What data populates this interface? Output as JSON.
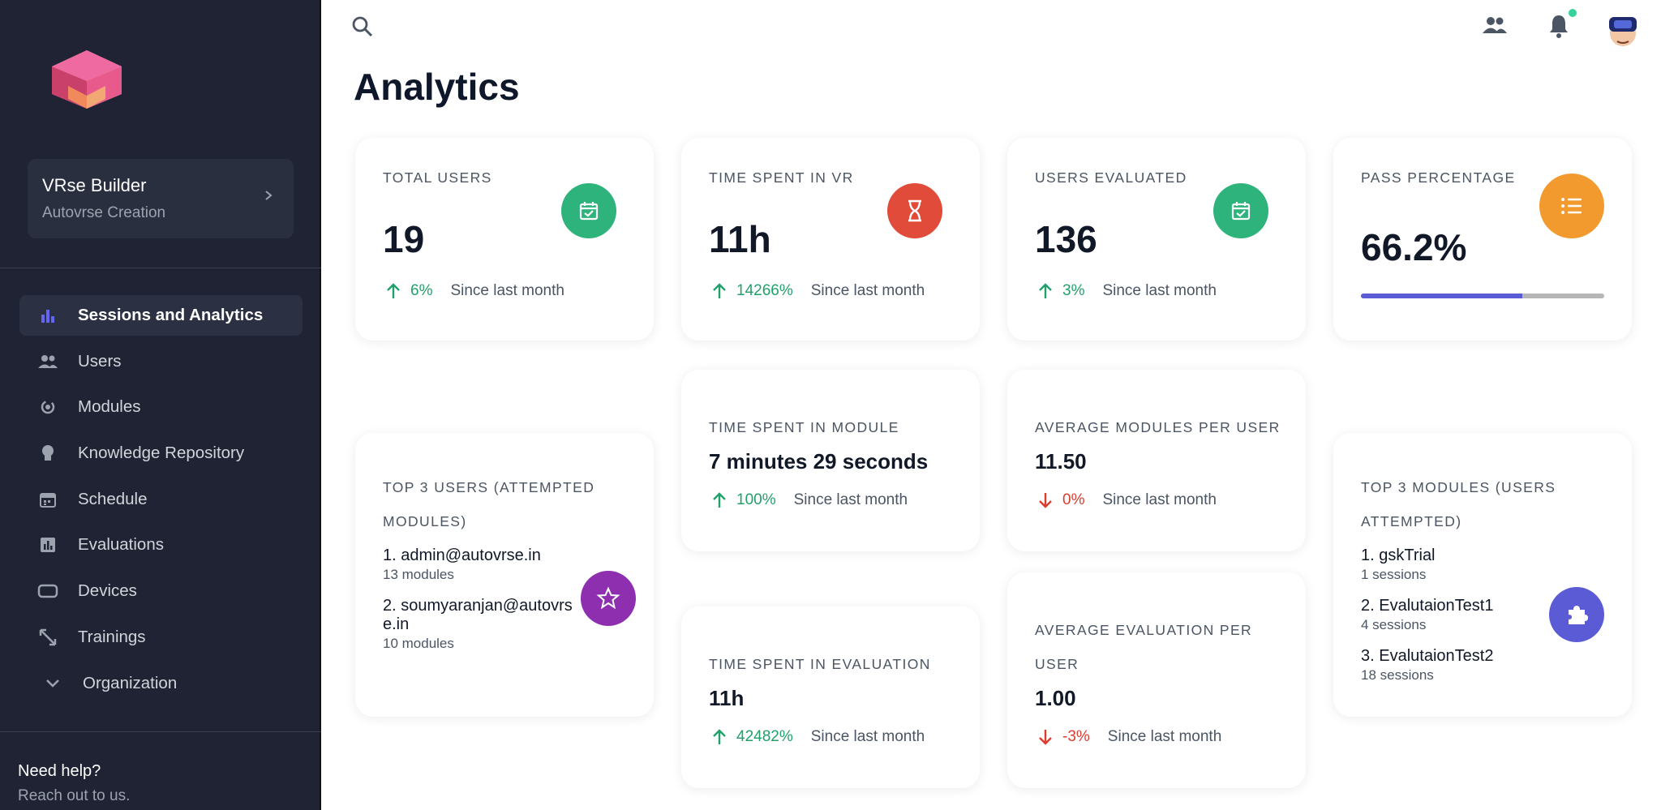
{
  "sidebar": {
    "tenant": {
      "name": "VRse Builder",
      "subtitle": "Autovrse Creation"
    },
    "nav": [
      {
        "label": "Sessions and Analytics",
        "icon": "bar-chart-icon",
        "active": true
      },
      {
        "label": "Users",
        "icon": "users-icon"
      },
      {
        "label": "Modules",
        "icon": "modules-icon"
      },
      {
        "label": "Knowledge Repository",
        "icon": "lightbulb-icon"
      },
      {
        "label": "Schedule",
        "icon": "calendar-icon"
      },
      {
        "label": "Evaluations",
        "icon": "evaluations-icon"
      },
      {
        "label": "Devices",
        "icon": "device-icon"
      },
      {
        "label": "Trainings",
        "icon": "trainings-icon"
      },
      {
        "label": "Organization",
        "icon": "chevron-down-icon"
      }
    ],
    "help": {
      "title": "Need help?",
      "subtitle": "Reach out to us."
    }
  },
  "page": {
    "title": "Analytics"
  },
  "colors": {
    "green": "#2fb37c",
    "red": "#e04b3a",
    "orange": "#f29a2e",
    "purple": "#8e2fb0",
    "indigo": "#5b5bd6"
  },
  "cards": {
    "total_users": {
      "label": "TOTAL USERS",
      "value": "19",
      "trend": "6%",
      "since": "Since last month"
    },
    "time_vr": {
      "label": "TIME SPENT IN VR",
      "value": "11h",
      "trend": "14266%",
      "since": "Since last month"
    },
    "users_evaluated": {
      "label": "USERS EVALUATED",
      "value": "136",
      "trend": "3%",
      "since": "Since last month"
    },
    "pass_percentage": {
      "label": "PASS PERCENTAGE",
      "value": "66.2%",
      "progress": 0.662
    },
    "time_module": {
      "label": "TIME SPENT IN MODULE",
      "value": "7 minutes 29 seconds",
      "trend": "100%",
      "since": "Since last month"
    },
    "avg_modules": {
      "label": "AVERAGE MODULES PER USER",
      "value": "11.50",
      "trend": "0%",
      "since": "Since last month"
    },
    "time_eval": {
      "label": "TIME SPENT IN EVALUATION",
      "value": "11h",
      "trend": "42482%",
      "since": "Since last month"
    },
    "avg_eval": {
      "label_line1": "AVERAGE EVALUATION PER",
      "label_line2": "USER",
      "value": "1.00",
      "trend": "-3%",
      "since": "Since last month"
    },
    "top_users": {
      "label_line1": "TOP 3 USERS (ATTEMPTED",
      "label_line2": "MODULES)",
      "items": [
        {
          "name": "1. admin@autovrse.in",
          "sub": "13 modules"
        },
        {
          "name": "2. soumyaranjan@autovrse.in",
          "sub": "10 modules"
        }
      ]
    },
    "top_modules": {
      "label_line1": "TOP 3 MODULES (USERS",
      "label_line2": "ATTEMPTED)",
      "items": [
        {
          "name": "1. gskTrial",
          "sub": "1 sessions"
        },
        {
          "name": "2. EvalutaionTest1",
          "sub": "4 sessions"
        },
        {
          "name": "3. EvalutaionTest2",
          "sub": "18 sessions"
        }
      ]
    }
  }
}
